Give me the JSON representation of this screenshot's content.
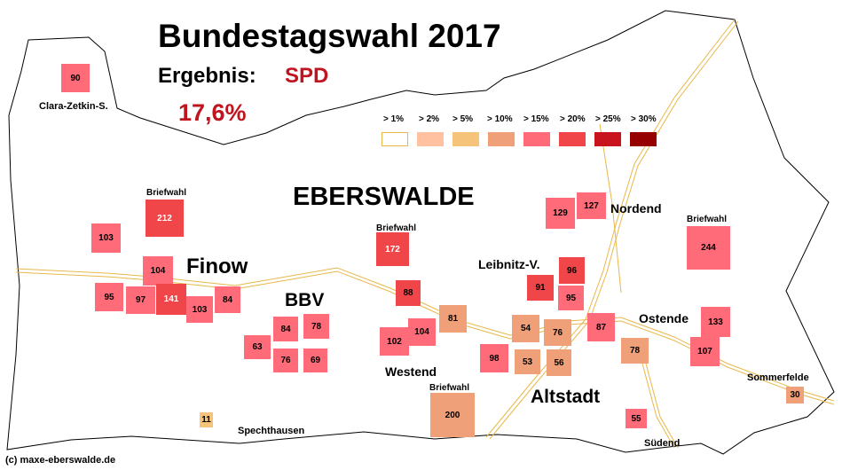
{
  "title": "Bundestagswahl 2017",
  "result_label": "Ergebnis:",
  "party": "SPD",
  "overall_percent": "17,6%",
  "city": "EBERSWALDE",
  "credit": "(c) maxe-eberswalde.de",
  "colors": {
    "party": "#c0141e",
    "road": "#e8b84a",
    "scale": [
      "#ffffff",
      "#ffc1a0",
      "#f5c37a",
      "#f0a078",
      "#ff6b78",
      "#f0464a",
      "#c8141e",
      "#960000"
    ]
  },
  "legend": [
    {
      "label": "> 1%",
      "level": 0
    },
    {
      "label": "> 2%",
      "level": 1
    },
    {
      "label": "> 5%",
      "level": 2
    },
    {
      "label": "> 10%",
      "level": 3
    },
    {
      "label": "> 15%",
      "level": 4
    },
    {
      "label": "> 20%",
      "level": 5
    },
    {
      "label": "> 25%",
      "level": 6
    },
    {
      "label": "> 30%",
      "level": 7
    }
  ],
  "district_labels": {
    "clara": "Clara-Zetkin-S.",
    "finow": "Finow",
    "bbv": "BBV",
    "westend": "Westend",
    "leibnitz": "Leibnitz-V.",
    "nordend": "Nordend",
    "ostende": "Ostende",
    "altstadt": "Altstadt",
    "spechthausen": "Spechthausen",
    "sommerfelde": "Sommerfelde",
    "suedend": "Südend",
    "briefwahl": "Briefwahl"
  },
  "districts": [
    {
      "id": "90",
      "level": 4
    },
    {
      "id": "212",
      "level": 5,
      "briefwahl": true
    },
    {
      "id": "103",
      "level": 4
    },
    {
      "id": "104",
      "level": 4
    },
    {
      "id": "95",
      "level": 4
    },
    {
      "id": "97",
      "level": 4
    },
    {
      "id": "141",
      "level": 5
    },
    {
      "id": "103",
      "level": 4
    },
    {
      "id": "84",
      "level": 4
    },
    {
      "id": "63",
      "level": 4
    },
    {
      "id": "84",
      "level": 4
    },
    {
      "id": "78",
      "level": 4
    },
    {
      "id": "76",
      "level": 4
    },
    {
      "id": "69",
      "level": 4
    },
    {
      "id": "172",
      "level": 5,
      "briefwahl": true
    },
    {
      "id": "88",
      "level": 5
    },
    {
      "id": "102",
      "level": 4
    },
    {
      "id": "104",
      "level": 4
    },
    {
      "id": "81",
      "level": 3
    },
    {
      "id": "200",
      "level": 3,
      "briefwahl": true
    },
    {
      "id": "98",
      "level": 4
    },
    {
      "id": "54",
      "level": 3
    },
    {
      "id": "76",
      "level": 3
    },
    {
      "id": "53",
      "level": 3
    },
    {
      "id": "56",
      "level": 3
    },
    {
      "id": "129",
      "level": 4
    },
    {
      "id": "127",
      "level": 4
    },
    {
      "id": "96",
      "level": 5
    },
    {
      "id": "91",
      "level": 5
    },
    {
      "id": "95",
      "level": 4
    },
    {
      "id": "87",
      "level": 4
    },
    {
      "id": "78",
      "level": 3
    },
    {
      "id": "244",
      "level": 4,
      "briefwahl": true
    },
    {
      "id": "133",
      "level": 4
    },
    {
      "id": "107",
      "level": 4
    },
    {
      "id": "55",
      "level": 4
    },
    {
      "id": "30",
      "level": 3
    },
    {
      "id": "11",
      "level": 2
    }
  ]
}
